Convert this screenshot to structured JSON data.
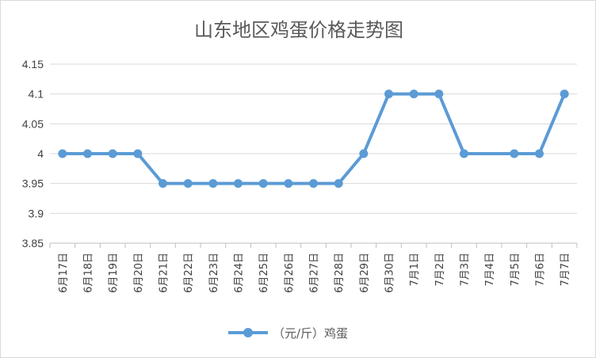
{
  "chart_data": {
    "type": "line",
    "title": "山东地区鸡蛋价格走势图",
    "categories": [
      "6月17日",
      "6月18日",
      "6月19日",
      "6月20日",
      "6月21日",
      "6月22日",
      "6月23日",
      "6月24日",
      "6月25日",
      "6月26日",
      "6月27日",
      "6月28日",
      "6月29日",
      "6月30日",
      "7月1日",
      "7月2日",
      "7月3日",
      "7月4日",
      "7月5日",
      "7月6日",
      "7月7日"
    ],
    "series": [
      {
        "name": "（元/斤）鸡蛋",
        "color": "#5b9bd5",
        "values": [
          4,
          4,
          4,
          4,
          3.95,
          3.95,
          3.95,
          3.95,
          3.95,
          3.95,
          3.95,
          3.95,
          4,
          4.1,
          4.1,
          4.1,
          4,
          null,
          4,
          4,
          4.1
        ]
      }
    ],
    "ylim": [
      3.85,
      4.15
    ],
    "yticks": [
      "3.85",
      "3.9",
      "3.95",
      "4",
      "4.05",
      "4.1",
      "4.15"
    ],
    "grid": true,
    "legend": "bottom"
  }
}
